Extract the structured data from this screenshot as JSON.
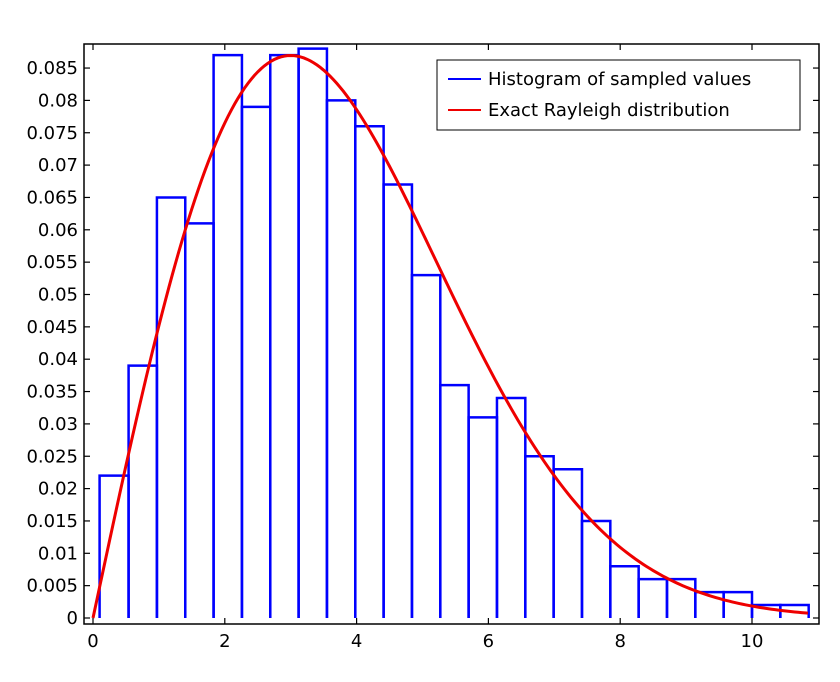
{
  "chart_data": {
    "type": "bar",
    "title": "",
    "xlabel": "",
    "ylabel": "",
    "xlim": [
      -0.2,
      10.9
    ],
    "ylim": [
      0,
      0.09
    ],
    "x_ticks": [
      0,
      2,
      4,
      6,
      8,
      10
    ],
    "y_ticks": [
      0,
      0.005,
      0.01,
      0.015,
      0.02,
      0.025,
      0.03,
      0.035,
      0.04,
      0.045,
      0.05,
      0.055,
      0.06,
      0.065,
      0.07,
      0.075,
      0.08,
      0.085
    ],
    "x_tick_labels": [
      "0",
      "2",
      "4",
      "6",
      "8",
      "10"
    ],
    "y_tick_labels": [
      "0",
      "0.005",
      "0.01",
      "0.015",
      "0.02",
      "0.025",
      "0.03",
      "0.035",
      "0.04",
      "0.045",
      "0.05",
      "0.055",
      "0.06",
      "0.065",
      "0.07",
      "0.075",
      "0.08",
      "0.085"
    ],
    "grid": false,
    "legend_position": "top-right",
    "series": [
      {
        "name": "Histogram of sampled values",
        "type": "histogram",
        "color": "#0000ff",
        "bin_edges": [
          0.1,
          0.54,
          0.97,
          1.4,
          1.83,
          2.26,
          2.69,
          3.12,
          3.55,
          3.98,
          4.41,
          4.84,
          5.27,
          5.7,
          6.13,
          6.56,
          6.99,
          7.42,
          7.85,
          8.28,
          8.71,
          9.14,
          9.57,
          10.0,
          10.43,
          10.86
        ],
        "values": [
          0.022,
          0.039,
          0.065,
          0.061,
          0.087,
          0.079,
          0.087,
          0.088,
          0.08,
          0.076,
          0.067,
          0.053,
          0.036,
          0.031,
          0.034,
          0.025,
          0.023,
          0.015,
          0.008,
          0.006,
          0.006,
          0.004,
          0.004,
          0.002,
          0.002
        ]
      },
      {
        "name": "Exact Rayleigh distribution",
        "type": "line",
        "color": "#ee0000",
        "function": "rayleigh",
        "sigma": 3.0,
        "scale": 0.43,
        "x_range": [
          0,
          10.86
        ]
      }
    ]
  }
}
